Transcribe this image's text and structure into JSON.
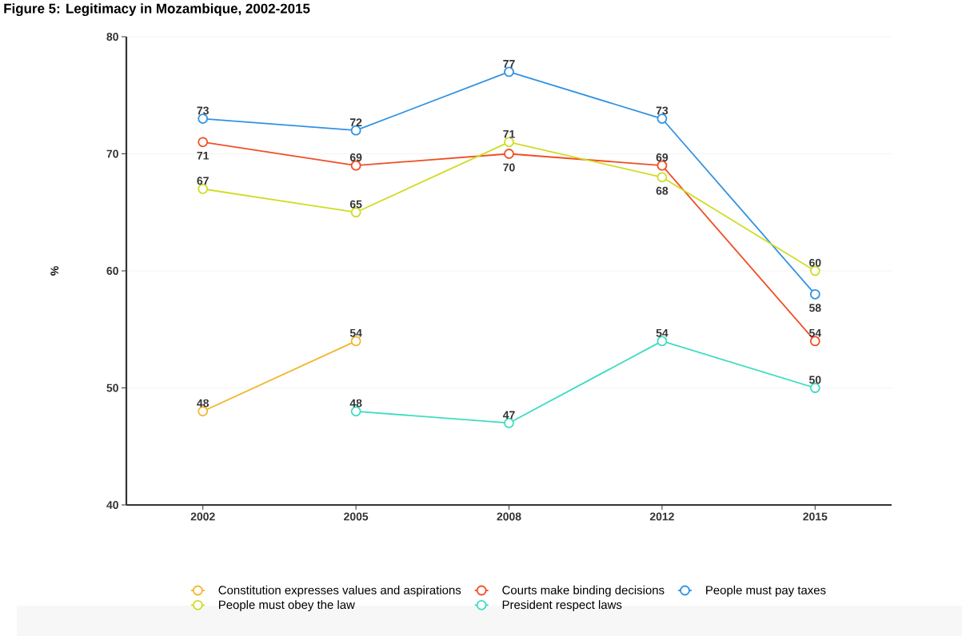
{
  "chart_data": {
    "type": "line",
    "title": "Figure 5: Legitimacy in Mozambique, 2002-2015",
    "ylabel": "%",
    "categories": [
      "2002",
      "2005",
      "2008",
      "2012",
      "2015"
    ],
    "series": [
      {
        "name": "Constitution expresses values and aspirations",
        "color": "#f2b72e",
        "values": [
          48,
          54,
          null,
          null,
          null
        ]
      },
      {
        "name": "Courts make binding decisions",
        "color": "#f04e25",
        "values": [
          71,
          69,
          70,
          69,
          54
        ]
      },
      {
        "name": "People must pay taxes",
        "color": "#3192e3",
        "values": [
          73,
          72,
          77,
          73,
          58
        ]
      },
      {
        "name": "People must obey the law",
        "color": "#d0dc22",
        "values": [
          67,
          65,
          71,
          68,
          60
        ]
      },
      {
        "name": "President respect laws",
        "color": "#3edcc2",
        "values": [
          null,
          48,
          47,
          54,
          50
        ]
      }
    ],
    "ylim": [
      40,
      80
    ],
    "yticks": [
      40,
      50,
      60,
      70,
      80
    ],
    "grid": "y",
    "legend": "bottom",
    "marker": "circle",
    "line_style": "solid",
    "data_labels": true
  }
}
